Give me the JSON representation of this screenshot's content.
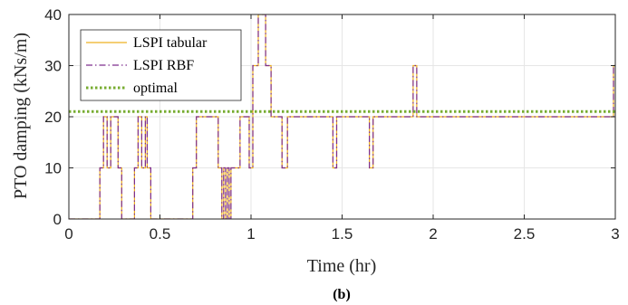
{
  "chart_data": {
    "type": "line",
    "xlabel": "Time (hr)",
    "ylabel": "PTO damping (kNs/m)",
    "xlim": [
      0,
      3
    ],
    "ylim": [
      0,
      40
    ],
    "xticks": [
      "0",
      "0.5",
      "1",
      "1.5",
      "2",
      "2.5",
      "3"
    ],
    "yticks": [
      "0",
      "10",
      "20",
      "30",
      "40"
    ],
    "grid": true,
    "legend_position": "top-left",
    "caption": "(b)",
    "series": [
      {
        "name": "LSPI tabular",
        "style": "solid",
        "color": "#EDB120",
        "steps": [
          [
            0,
            0
          ],
          [
            0.17,
            10
          ],
          [
            0.19,
            20
          ],
          [
            0.21,
            10
          ],
          [
            0.23,
            20
          ],
          [
            0.27,
            10
          ],
          [
            0.29,
            0
          ],
          [
            0.36,
            10
          ],
          [
            0.38,
            20
          ],
          [
            0.4,
            10
          ],
          [
            0.42,
            20
          ],
          [
            0.43,
            10
          ],
          [
            0.45,
            0
          ],
          [
            0.68,
            10
          ],
          [
            0.7,
            20
          ],
          [
            0.82,
            10
          ],
          [
            0.84,
            0
          ],
          [
            0.85,
            10
          ],
          [
            0.86,
            0
          ],
          [
            0.87,
            10
          ],
          [
            0.88,
            0
          ],
          [
            0.89,
            10
          ],
          [
            0.94,
            20
          ],
          [
            0.99,
            10
          ],
          [
            1.01,
            30
          ],
          [
            1.04,
            40
          ],
          [
            1.08,
            30
          ],
          [
            1.11,
            20
          ],
          [
            1.17,
            10
          ],
          [
            1.2,
            20
          ],
          [
            1.45,
            10
          ],
          [
            1.47,
            20
          ],
          [
            1.65,
            10
          ],
          [
            1.67,
            20
          ],
          [
            1.89,
            30
          ],
          [
            1.91,
            20
          ],
          [
            2.99,
            30
          ]
        ]
      },
      {
        "name": "LSPI RBF",
        "style": "dashdot",
        "color": "#7E2F8E",
        "steps": [
          [
            0,
            0
          ],
          [
            0.17,
            10
          ],
          [
            0.19,
            20
          ],
          [
            0.21,
            10
          ],
          [
            0.23,
            20
          ],
          [
            0.27,
            10
          ],
          [
            0.29,
            0
          ],
          [
            0.36,
            10
          ],
          [
            0.38,
            20
          ],
          [
            0.4,
            10
          ],
          [
            0.42,
            20
          ],
          [
            0.43,
            10
          ],
          [
            0.45,
            0
          ],
          [
            0.68,
            10
          ],
          [
            0.7,
            20
          ],
          [
            0.82,
            10
          ],
          [
            0.84,
            0
          ],
          [
            0.85,
            10
          ],
          [
            0.86,
            0
          ],
          [
            0.87,
            10
          ],
          [
            0.88,
            0
          ],
          [
            0.89,
            10
          ],
          [
            0.94,
            20
          ],
          [
            0.99,
            10
          ],
          [
            1.01,
            30
          ],
          [
            1.04,
            40
          ],
          [
            1.08,
            30
          ],
          [
            1.11,
            20
          ],
          [
            1.17,
            10
          ],
          [
            1.2,
            20
          ],
          [
            1.45,
            10
          ],
          [
            1.47,
            20
          ],
          [
            1.65,
            10
          ],
          [
            1.67,
            20
          ],
          [
            1.89,
            30
          ],
          [
            1.91,
            20
          ],
          [
            2.99,
            30
          ]
        ]
      },
      {
        "name": "optimal",
        "style": "dotted",
        "color": "#77AC30",
        "steps": [
          [
            0,
            21
          ]
        ]
      }
    ]
  }
}
